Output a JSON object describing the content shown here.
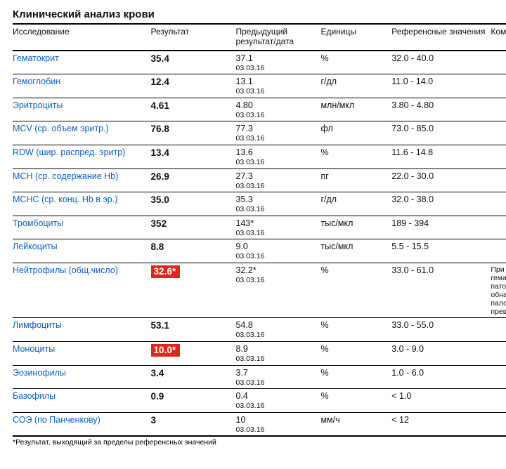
{
  "title": "Клинический анализ крови",
  "columns": {
    "test": "Исследование",
    "result": "Результат",
    "prev": "Предыдущий\nрезультат/дата",
    "units": "Единицы",
    "ref": "Референсные\nзначения",
    "comment": "Комм"
  },
  "colors": {
    "link_blue": "#0b5ec9",
    "flag_red_bg": "#e1251b",
    "flag_red_text": "#ffffff",
    "border": "#000000"
  },
  "rows": [
    {
      "test": "Гематокрит",
      "result": "35.4",
      "flag": false,
      "prev_value": "37.1",
      "prev_date": "03.03.16",
      "units": "%",
      "ref": "32.0 - 40.0",
      "comment": ""
    },
    {
      "test": "Гемоглобин",
      "result": "12.4",
      "flag": false,
      "prev_value": "13.1",
      "prev_date": "03.03.16",
      "units": "г/дл",
      "ref": "11.0 - 14.0",
      "comment": ""
    },
    {
      "test": "Эритроциты",
      "result": "4.61",
      "flag": false,
      "prev_value": "4.80",
      "prev_date": "03.03.16",
      "units": "млн/мкл",
      "ref": "3.80 - 4.80",
      "comment": ""
    },
    {
      "test": "MCV (ср. объем эритр.)",
      "result": "76.8",
      "flag": false,
      "prev_value": "77.3",
      "prev_date": "03.03.16",
      "units": "фл",
      "ref": "73.0 - 85.0",
      "comment": ""
    },
    {
      "test": "RDW (шир. распред. эритр)",
      "result": "13.4",
      "flag": false,
      "prev_value": "13.6",
      "prev_date": "03.03.16",
      "units": "%",
      "ref": "11.6 - 14.8",
      "comment": ""
    },
    {
      "test": "MCH (ср. содержание Hb)",
      "result": "26.9",
      "flag": false,
      "prev_value": "27.3",
      "prev_date": "03.03.16",
      "units": "пг",
      "ref": "22.0 - 30.0",
      "comment": ""
    },
    {
      "test": "MCHC (ср. конц. Hb в эр.)",
      "result": "35.0",
      "flag": false,
      "prev_value": "35.3",
      "prev_date": "03.03.16",
      "units": "г/дл",
      "ref": "32.0 - 38.0",
      "comment": ""
    },
    {
      "test": "Тромбоциты",
      "result": "352",
      "flag": false,
      "prev_value": "143*",
      "prev_date": "03.03.16",
      "units": "тыс/мкл",
      "ref": "189 - 394",
      "comment": ""
    },
    {
      "test": "Лейкоциты",
      "result": "8.8",
      "flag": false,
      "prev_value": "9.0",
      "prev_date": "03.03.16",
      "units": "тыс/мкл",
      "ref": "5.5 - 15.5",
      "comment": ""
    },
    {
      "test": "Нейтрофилы (общ.число)",
      "result": "32.6*",
      "flag": true,
      "prev_value": "32.2*",
      "prev_date": "03.03.16",
      "units": "%",
      "ref": "33.0 - 61.0",
      "comment": "При и\nгемат\nпатол\nобнар\nпалоч\nпревы"
    },
    {
      "test": "Лимфоциты",
      "result": "53.1",
      "flag": false,
      "prev_value": "54.8",
      "prev_date": "03.03.16",
      "units": "%",
      "ref": "33.0 - 55.0",
      "comment": ""
    },
    {
      "test": "Моноциты",
      "result": "10.0*",
      "flag": true,
      "prev_value": "8.9",
      "prev_date": "03.03.16",
      "units": "%",
      "ref": "3.0 - 9.0",
      "comment": ""
    },
    {
      "test": "Эозинофилы",
      "result": "3.4",
      "flag": false,
      "prev_value": "3.7",
      "prev_date": "03.03.16",
      "units": "%",
      "ref": "1.0 - 6.0",
      "comment": ""
    },
    {
      "test": "Базофилы",
      "result": "0.9",
      "flag": false,
      "prev_value": "0.4",
      "prev_date": "03.03.16",
      "units": "%",
      "ref": "< 1.0",
      "comment": ""
    },
    {
      "test": "СОЭ (по Панченкову)",
      "result": "3",
      "flag": false,
      "prev_value": "10",
      "prev_date": "03.03.16",
      "units": "мм/ч",
      "ref": "< 12",
      "comment": ""
    }
  ],
  "footnote": "*Результат, выходящий за пределы референсных значений"
}
